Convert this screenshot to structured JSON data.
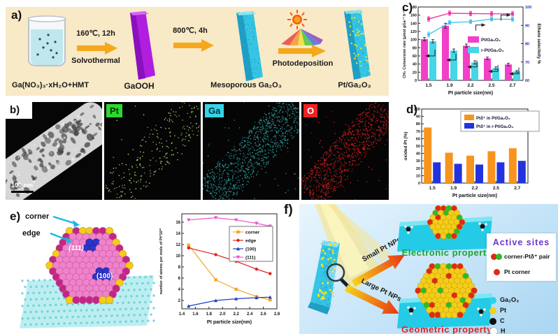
{
  "panels": {
    "a": {
      "label": "a)",
      "precursor": "Ga(NO₃)₃·xH₂O+HMT",
      "step1_temp": "160℃, 12h",
      "step1_method": "Solvothermal",
      "product1": "GaOOH",
      "step2_temp": "800℃, 4h",
      "product2": "Mesoporous Ga₂O₃",
      "step3_method": "Photodeposition",
      "product3": "Pt/Ga₂O₃",
      "arrow_color": "#f5a81c"
    },
    "b": {
      "label": "b)",
      "scale_bar": "100 nm",
      "maps": [
        {
          "element": "Pt",
          "chip_bg": "#2ed82e",
          "chip_text": "#003300",
          "dot_color": "#b8e87a",
          "dot_count": 240
        },
        {
          "element": "Ga",
          "chip_bg": "#35d4e8",
          "chip_text": "#00333a",
          "dot_color": "#2f9e9e",
          "dot_count": 950
        },
        {
          "element": "O",
          "chip_bg": "#ee2222",
          "chip_text": "#ffffff",
          "dot_color": "#cc2020",
          "dot_count": 900
        }
      ]
    },
    "c": {
      "label": "c)"
    },
    "d": {
      "label": "d)"
    },
    "e": {
      "label": "e)",
      "corner": "corner",
      "edge": "edge",
      "face_111": "(111)",
      "face_100": "(100)"
    },
    "f": {
      "label": "f)",
      "small": "Small Pt NPs",
      "large": "Large Pt NPs",
      "electronic": "Electronic property",
      "geometric": "Geometric property",
      "active_sites": "Active sites",
      "pair_label": "corner-Ptδ⁺ pair",
      "corner_label": "Pt corner",
      "electronic_color": "#1fa32c",
      "geometric_color": "#e62222",
      "active_sites_color": "#6a35cc",
      "atoms": [
        {
          "name": "Ga₂O₃",
          "color": "#29d3e8"
        },
        {
          "name": "Pt",
          "color": "#f4d01e"
        },
        {
          "name": "C",
          "color": "#111111"
        },
        {
          "name": "H",
          "color": "#ffffff"
        }
      ]
    }
  },
  "chart_data": [
    {
      "id": "panel-c",
      "type": "bar+line",
      "categories": [
        "1.5",
        "1.9",
        "2.2",
        "2.5",
        "2.7"
      ],
      "xlabel": "Pt particle size(nm)",
      "ylabel_left": "CH₄ Conversion rate (μmol gGa⁻¹ h⁻¹)",
      "ylabel_right": "Ethane selectivity %",
      "ylim_left": [
        0,
        180
      ],
      "yticks_left": [
        0,
        20,
        40,
        60,
        80,
        100,
        120,
        140,
        160,
        180
      ],
      "ylim_right": [
        60,
        100
      ],
      "yticks_right": [
        60,
        70,
        80,
        90,
        100
      ],
      "right_tick_color": "#1533cc",
      "bar_series": [
        {
          "name": "Pt/Ga₂O₃",
          "color": "#f23fc8",
          "axis": "left",
          "values": [
            101,
            134,
            85,
            54,
            39
          ],
          "errors": [
            4,
            6,
            4,
            3,
            3
          ]
        },
        {
          "name": "r-Pt/Ga₂O₃",
          "color": "#45d6e8",
          "axis": "left",
          "values": [
            96,
            73,
            44,
            30,
            22
          ],
          "errors": [
            4,
            4,
            4,
            3,
            2
          ]
        }
      ],
      "line_series": [
        {
          "name": "Pt/Ga₂O₃ ethane selectivity",
          "color": "#f0309e",
          "axis": "right",
          "values": [
            93.5,
            96.6,
            96.4,
            96.3,
            96.3
          ],
          "errors": [
            1.2,
            1.2,
            1.2,
            1.2,
            1.2
          ]
        },
        {
          "name": "r-Pt/Ga₂O₃ ethane selectivity",
          "color": "#40c4e8",
          "axis": "right",
          "values": [
            85.0,
            91.5,
            92.0,
            93.4,
            93.3
          ],
          "errors": [
            1.3,
            1.0,
            1.0,
            1.0,
            1.0
          ]
        }
      ],
      "legend": [
        "Pt/Ga₂O₃",
        "r-Pt/Ga₂O₃"
      ],
      "bar_annotation_y": [
        60,
        50,
        33,
        22,
        16
      ]
    },
    {
      "id": "panel-d",
      "type": "bar",
      "categories": [
        "1.5",
        "1.9",
        "2.2",
        "2.5",
        "2.7"
      ],
      "xlabel": "Pt particle size(nm)",
      "ylabel": "oxided Pt (%)",
      "ylim": [
        0,
        100
      ],
      "yticks": [
        0,
        10,
        20,
        30,
        40,
        50,
        60,
        70,
        80,
        90,
        100
      ],
      "series": [
        {
          "name": "Ptδ⁺ in Pt/Ga₂O₃",
          "color": "#f7941d",
          "values": [
            75,
            41,
            37,
            43,
            47
          ]
        },
        {
          "name": "Ptδ⁺ in r-Pt/Ga₂O₃",
          "color": "#2233dd",
          "values": [
            28,
            26,
            25,
            28,
            30
          ]
        }
      ],
      "legend_position": "top-right"
    },
    {
      "id": "panel-e",
      "type": "line",
      "x": [
        1.5,
        1.9,
        2.2,
        2.5,
        2.7
      ],
      "xlabel": "Pt particle size(nm)",
      "ylabel": "number of atoms per mole of Pt*10²²",
      "xlim": [
        1.4,
        2.8
      ],
      "xticks": [
        1.4,
        1.6,
        1.8,
        2.0,
        2.2,
        2.4,
        2.6,
        2.8
      ],
      "ylim": [
        0.5,
        17.5
      ],
      "yticks": [
        2,
        4,
        6,
        8,
        10,
        12,
        14,
        16
      ],
      "series": [
        {
          "name": "corner",
          "color": "#f5a623",
          "marker": "square",
          "values": [
            11.9,
            5.7,
            4.0,
            2.7,
            2.1
          ]
        },
        {
          "name": "edge",
          "color": "#e02020",
          "marker": "circle",
          "values": [
            11.4,
            10.2,
            9.0,
            7.6,
            6.8
          ]
        },
        {
          "name": "(100)",
          "color": "#2040c0",
          "marker": "triangle",
          "values": [
            1.0,
            2.0,
            2.3,
            2.5,
            2.6
          ]
        },
        {
          "name": "(111)",
          "color": "#f050d0",
          "marker": "tridown",
          "values": [
            16.4,
            16.8,
            16.4,
            15.8,
            15.3
          ]
        }
      ],
      "legend_position": "right"
    }
  ]
}
